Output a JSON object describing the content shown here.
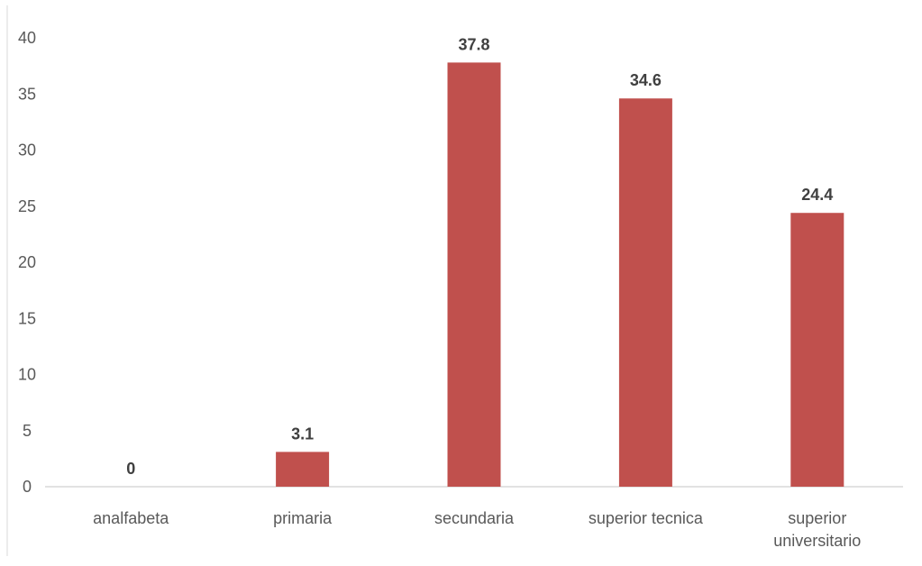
{
  "chart_data": {
    "type": "bar",
    "title": "",
    "xlabel": "",
    "ylabel": "",
    "categories": [
      [
        "analfabeta"
      ],
      [
        "primaria"
      ],
      [
        "secundaria"
      ],
      [
        "superior tecnica"
      ],
      [
        "superior",
        "universitario"
      ]
    ],
    "values": [
      0,
      3.1,
      37.8,
      34.6,
      24.4
    ],
    "value_labels": [
      "0",
      "3.1",
      "37.8",
      "34.6",
      "24.4"
    ],
    "ylim": [
      0,
      40
    ],
    "yticks": [
      0,
      5,
      10,
      15,
      20,
      25,
      30,
      35,
      40
    ],
    "grid": false,
    "legend": "none",
    "bar_color": "#C0504D",
    "axis_color": "#D9D9D9"
  }
}
